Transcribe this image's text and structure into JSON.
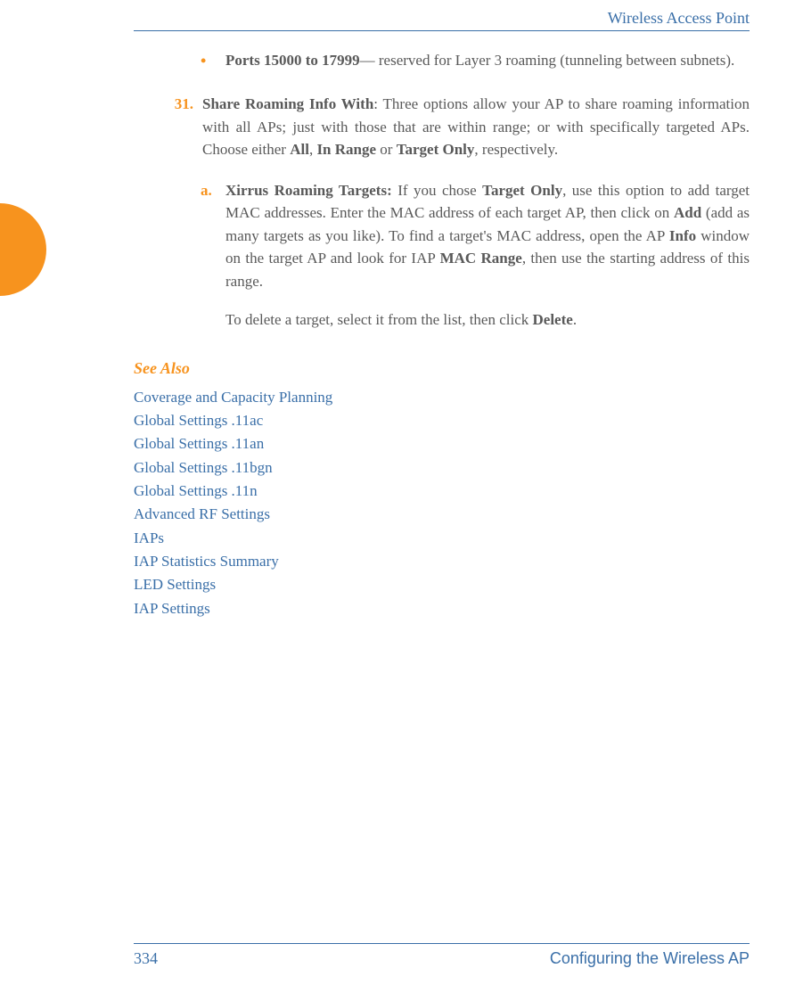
{
  "header": {
    "title": "Wireless Access Point"
  },
  "bullet": {
    "marker": "•",
    "bold_text": "Ports 15000 to 17999",
    "rest_text": "— reserved for Layer 3 roaming (tunneling between subnets)."
  },
  "item31": {
    "number": "31.",
    "bold_label": "Share Roaming Info With",
    "text_part1": ": Three options allow your AP to share roaming information with all APs; just with those that are within range; or with specifically targeted APs. Choose either ",
    "bold_all": "All",
    "sep1": ", ",
    "bold_inrange": "In Range",
    "sep2": " or ",
    "bold_target": "Target Only",
    "text_end": ", respectively."
  },
  "item_a": {
    "letter": "a.",
    "bold_label": "Xirrus Roaming Targets:",
    "text1": " If you chose ",
    "bold_targetonly": "Target Only",
    "text2": ", use this option to add target MAC addresses. Enter the MAC address of each target AP, then click on ",
    "bold_add": "Add",
    "text3": " (add as many targets as you like). To find a target's MAC address, open the AP ",
    "bold_info": "Info",
    "text4": " window on the target AP and look for IAP ",
    "bold_macrange": "MAC Range",
    "text5": ", then use the starting address of this range."
  },
  "delete_para": {
    "text1": "To delete a target, select it from the list, then click ",
    "bold_delete": "Delete",
    "text2": "."
  },
  "see_also": {
    "heading": "See Also",
    "links": [
      "Coverage and Capacity Planning",
      "Global Settings .11ac",
      "Global Settings .11an",
      "Global Settings .11bgn",
      "Global Settings .11n",
      "Advanced RF Settings",
      "IAPs",
      "IAP Statistics Summary",
      "LED Settings",
      "IAP Settings"
    ]
  },
  "footer": {
    "page_number": "334",
    "section": "Configuring the Wireless AP"
  },
  "colors": {
    "accent_blue": "#3a6fa8",
    "accent_orange": "#f7931e",
    "body_text": "#595959",
    "background": "#ffffff"
  }
}
